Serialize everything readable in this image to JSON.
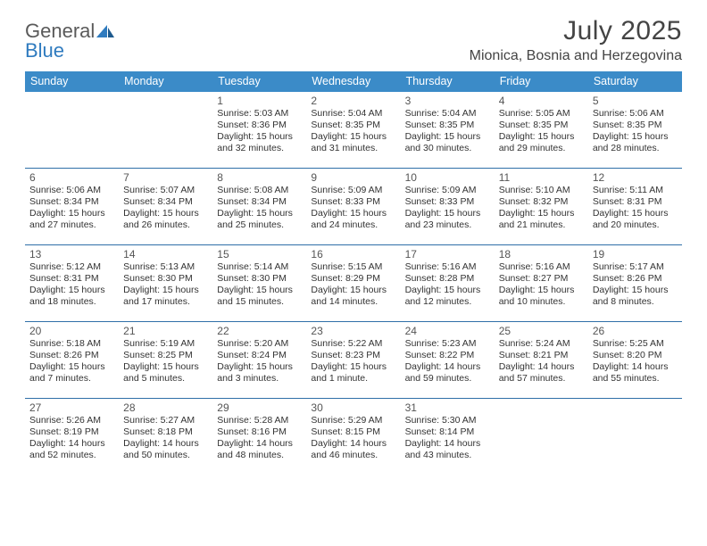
{
  "logo": {
    "word1": "General",
    "word2": "Blue"
  },
  "title": "July 2025",
  "location": "Mionica, Bosnia and Herzegovina",
  "header_bg": "#3b8bc8",
  "divider_color": "#2f6fa8",
  "days": [
    "Sunday",
    "Monday",
    "Tuesday",
    "Wednesday",
    "Thursday",
    "Friday",
    "Saturday"
  ],
  "weeks": [
    [
      null,
      null,
      {
        "n": "1",
        "sr": "5:03 AM",
        "ss": "8:36 PM",
        "dl": "15 hours and 32 minutes."
      },
      {
        "n": "2",
        "sr": "5:04 AM",
        "ss": "8:35 PM",
        "dl": "15 hours and 31 minutes."
      },
      {
        "n": "3",
        "sr": "5:04 AM",
        "ss": "8:35 PM",
        "dl": "15 hours and 30 minutes."
      },
      {
        "n": "4",
        "sr": "5:05 AM",
        "ss": "8:35 PM",
        "dl": "15 hours and 29 minutes."
      },
      {
        "n": "5",
        "sr": "5:06 AM",
        "ss": "8:35 PM",
        "dl": "15 hours and 28 minutes."
      }
    ],
    [
      {
        "n": "6",
        "sr": "5:06 AM",
        "ss": "8:34 PM",
        "dl": "15 hours and 27 minutes."
      },
      {
        "n": "7",
        "sr": "5:07 AM",
        "ss": "8:34 PM",
        "dl": "15 hours and 26 minutes."
      },
      {
        "n": "8",
        "sr": "5:08 AM",
        "ss": "8:34 PM",
        "dl": "15 hours and 25 minutes."
      },
      {
        "n": "9",
        "sr": "5:09 AM",
        "ss": "8:33 PM",
        "dl": "15 hours and 24 minutes."
      },
      {
        "n": "10",
        "sr": "5:09 AM",
        "ss": "8:33 PM",
        "dl": "15 hours and 23 minutes."
      },
      {
        "n": "11",
        "sr": "5:10 AM",
        "ss": "8:32 PM",
        "dl": "15 hours and 21 minutes."
      },
      {
        "n": "12",
        "sr": "5:11 AM",
        "ss": "8:31 PM",
        "dl": "15 hours and 20 minutes."
      }
    ],
    [
      {
        "n": "13",
        "sr": "5:12 AM",
        "ss": "8:31 PM",
        "dl": "15 hours and 18 minutes."
      },
      {
        "n": "14",
        "sr": "5:13 AM",
        "ss": "8:30 PM",
        "dl": "15 hours and 17 minutes."
      },
      {
        "n": "15",
        "sr": "5:14 AM",
        "ss": "8:30 PM",
        "dl": "15 hours and 15 minutes."
      },
      {
        "n": "16",
        "sr": "5:15 AM",
        "ss": "8:29 PM",
        "dl": "15 hours and 14 minutes."
      },
      {
        "n": "17",
        "sr": "5:16 AM",
        "ss": "8:28 PM",
        "dl": "15 hours and 12 minutes."
      },
      {
        "n": "18",
        "sr": "5:16 AM",
        "ss": "8:27 PM",
        "dl": "15 hours and 10 minutes."
      },
      {
        "n": "19",
        "sr": "5:17 AM",
        "ss": "8:26 PM",
        "dl": "15 hours and 8 minutes."
      }
    ],
    [
      {
        "n": "20",
        "sr": "5:18 AM",
        "ss": "8:26 PM",
        "dl": "15 hours and 7 minutes."
      },
      {
        "n": "21",
        "sr": "5:19 AM",
        "ss": "8:25 PM",
        "dl": "15 hours and 5 minutes."
      },
      {
        "n": "22",
        "sr": "5:20 AM",
        "ss": "8:24 PM",
        "dl": "15 hours and 3 minutes."
      },
      {
        "n": "23",
        "sr": "5:22 AM",
        "ss": "8:23 PM",
        "dl": "15 hours and 1 minute."
      },
      {
        "n": "24",
        "sr": "5:23 AM",
        "ss": "8:22 PM",
        "dl": "14 hours and 59 minutes."
      },
      {
        "n": "25",
        "sr": "5:24 AM",
        "ss": "8:21 PM",
        "dl": "14 hours and 57 minutes."
      },
      {
        "n": "26",
        "sr": "5:25 AM",
        "ss": "8:20 PM",
        "dl": "14 hours and 55 minutes."
      }
    ],
    [
      {
        "n": "27",
        "sr": "5:26 AM",
        "ss": "8:19 PM",
        "dl": "14 hours and 52 minutes."
      },
      {
        "n": "28",
        "sr": "5:27 AM",
        "ss": "8:18 PM",
        "dl": "14 hours and 50 minutes."
      },
      {
        "n": "29",
        "sr": "5:28 AM",
        "ss": "8:16 PM",
        "dl": "14 hours and 48 minutes."
      },
      {
        "n": "30",
        "sr": "5:29 AM",
        "ss": "8:15 PM",
        "dl": "14 hours and 46 minutes."
      },
      {
        "n": "31",
        "sr": "5:30 AM",
        "ss": "8:14 PM",
        "dl": "14 hours and 43 minutes."
      },
      null,
      null
    ]
  ],
  "labels": {
    "sunrise": "Sunrise: ",
    "sunset": "Sunset: ",
    "daylight": "Daylight: "
  }
}
